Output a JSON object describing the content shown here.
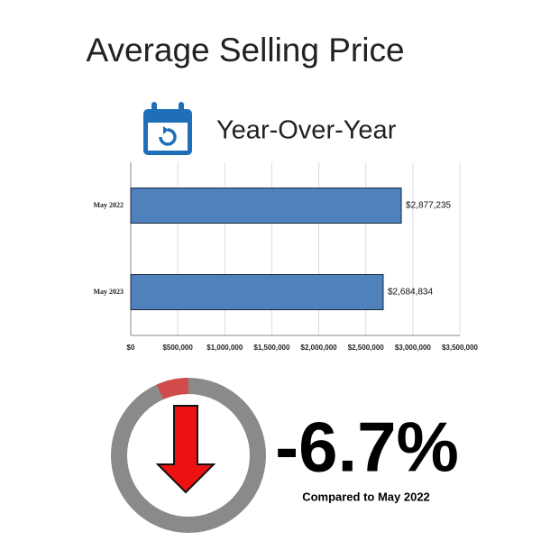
{
  "chart_data": [
    {
      "type": "hbar",
      "title": "Average Selling Price",
      "subtitle": "Year-Over-Year",
      "categories": [
        "May 2022",
        "May 2023"
      ],
      "values": [
        2877235,
        2684834
      ],
      "value_labels": [
        "$2,877,235",
        "$2,684,834"
      ],
      "color": "#4f81bd",
      "xlim": [
        0,
        3500000
      ],
      "xticks": [
        {
          "value": 0,
          "label": "$0"
        },
        {
          "value": 500000,
          "label": "$500,000"
        },
        {
          "value": 1000000,
          "label": "$1,000,000"
        },
        {
          "value": 1500000,
          "label": "$1,500,000"
        },
        {
          "value": 2000000,
          "label": "$2,000,000"
        },
        {
          "value": 2500000,
          "label": "$2,500,000"
        },
        {
          "value": 3000000,
          "label": "$3,000,000"
        },
        {
          "value": 3500000,
          "label": "$3,500,000"
        }
      ],
      "grid": true
    },
    {
      "type": "donut",
      "value": -6.7,
      "value_label": "-6.7%",
      "caption": "Compared to May 2022",
      "color": "#d24b4b",
      "track_color": "#8a8a8a"
    }
  ]
}
